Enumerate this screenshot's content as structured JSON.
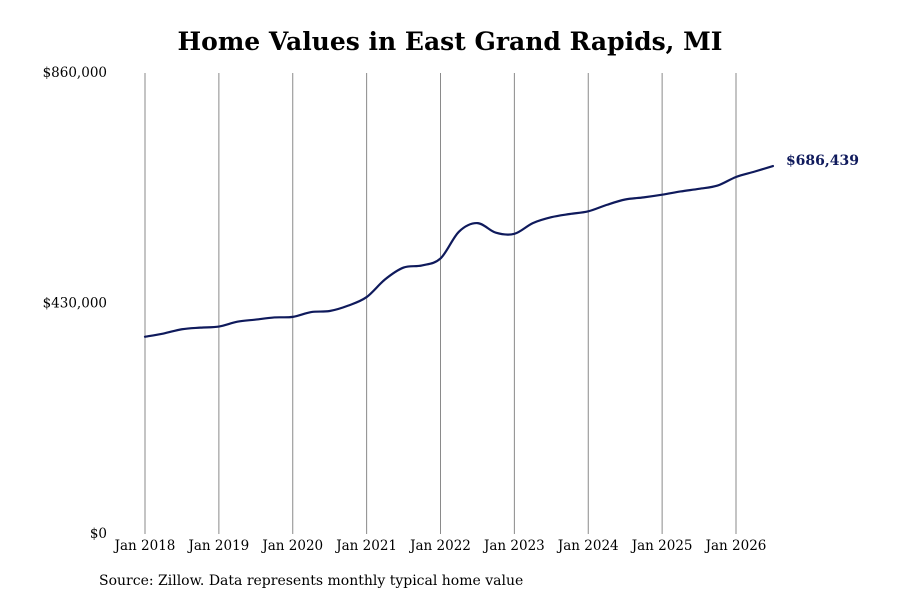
{
  "chart_data": {
    "type": "line",
    "title": "Home Values in East Grand Rapids, MI",
    "source": "Source: Zillow. Data represents monthly typical home value",
    "ylim": [
      0,
      860000
    ],
    "y_ticks": [
      0,
      430000,
      860000
    ],
    "y_tick_labels": [
      "$0",
      "$430,000",
      "$860,000"
    ],
    "x_ticks": [
      "2018-01",
      "2019-01",
      "2020-01",
      "2021-01",
      "2022-01",
      "2023-01",
      "2024-01",
      "2025-01",
      "2026-01"
    ],
    "x_tick_labels": [
      "Jan 2018",
      "Jan 2019",
      "Jan 2020",
      "Jan 2021",
      "Jan 2022",
      "Jan 2023",
      "Jan 2024",
      "Jan 2025",
      "Jan 2026"
    ],
    "grid": "vertical",
    "line_color": "#0f1a5c",
    "end_label": "$686,439",
    "series": [
      {
        "x": [
          "2018-01",
          "2018-04",
          "2018-07",
          "2018-10",
          "2019-01",
          "2019-04",
          "2019-07",
          "2019-10",
          "2020-01",
          "2020-04",
          "2020-07",
          "2020-10",
          "2021-01",
          "2021-04",
          "2021-07",
          "2021-10",
          "2022-01",
          "2022-04",
          "2022-07",
          "2022-10",
          "2023-01",
          "2023-04",
          "2023-07",
          "2023-10",
          "2024-01",
          "2024-04",
          "2024-07",
          "2024-10",
          "2025-01",
          "2025-04",
          "2025-07",
          "2025-10",
          "2026-01",
          "2026-04",
          "2026-07"
        ],
        "values": [
          368000,
          374000,
          382000,
          385000,
          387000,
          396000,
          400000,
          404000,
          405000,
          414000,
          416000,
          426000,
          442000,
          475000,
          497000,
          501000,
          514000,
          564000,
          580000,
          562000,
          560000,
          580000,
          591000,
          597000,
          602000,
          614000,
          624000,
          628000,
          633000,
          639000,
          644000,
          650000,
          666000,
          676000,
          686439
        ]
      }
    ]
  }
}
